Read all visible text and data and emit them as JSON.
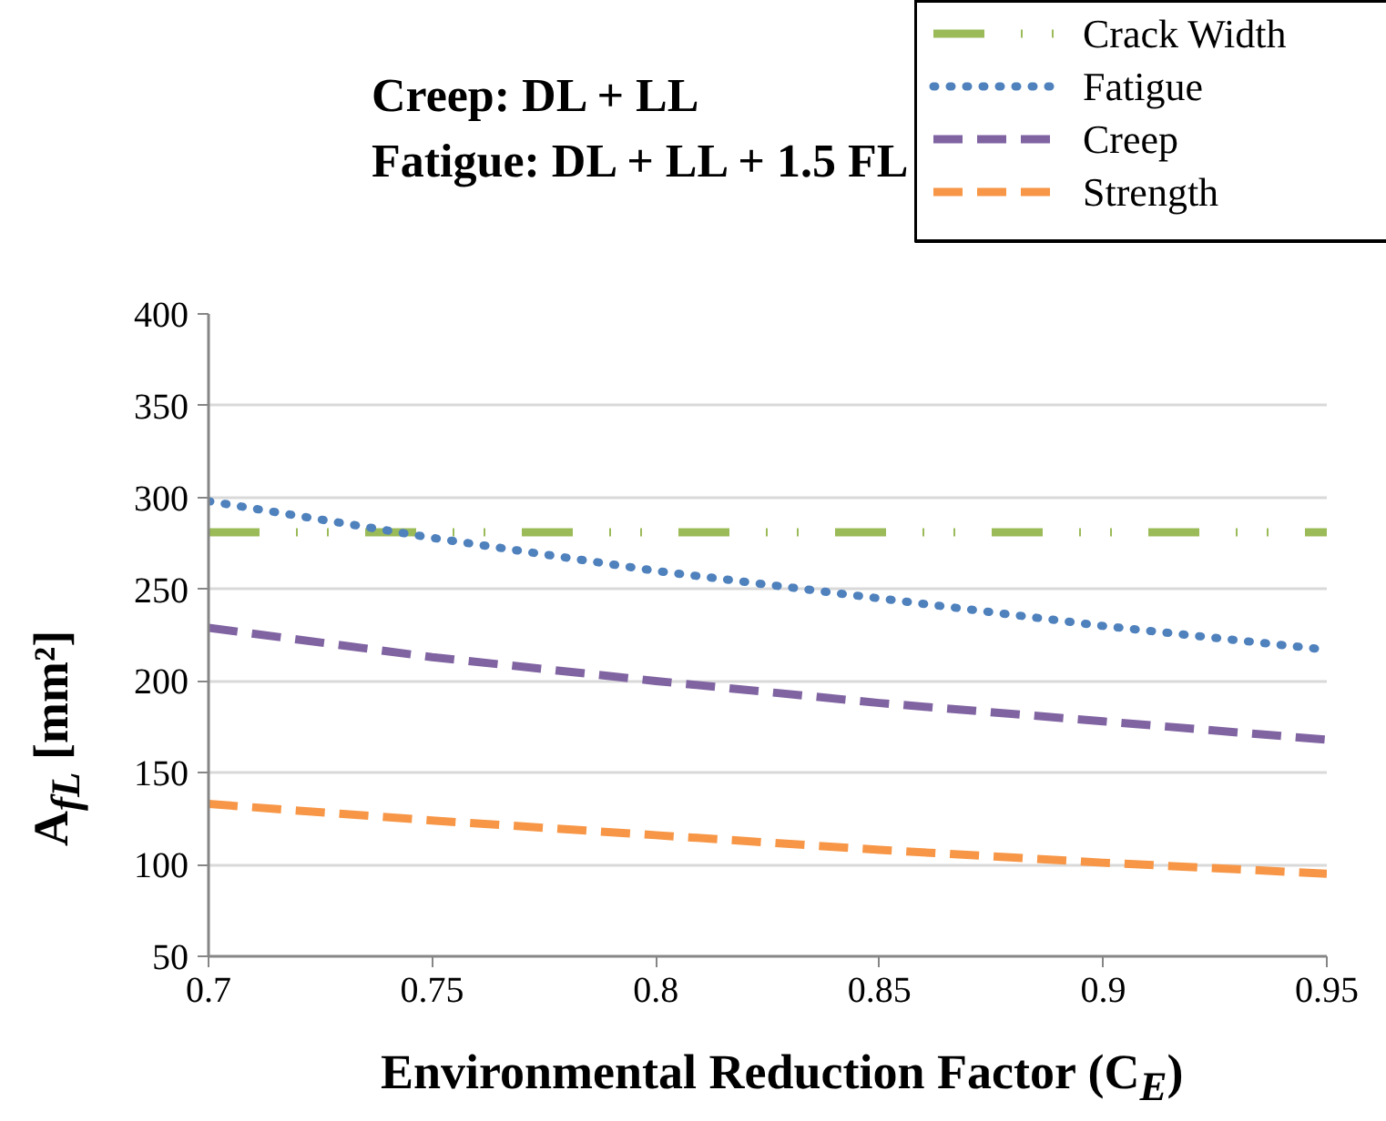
{
  "chart_data": {
    "type": "line",
    "annotations": [
      "Creep: DL + LL",
      "Fatigue: DL + LL + 1.5 FL"
    ],
    "xlabel": "Environmental Reduction Factor (C$_{E}$)",
    "ylabel": "A$_{fL}$ [mm²]",
    "x": [
      0.7,
      0.75,
      0.8,
      0.85,
      0.9,
      0.95
    ],
    "series": [
      {
        "name": "Crack Width",
        "color": "#9bbb59",
        "line_style": "dashdot",
        "values": [
          281,
          281,
          281,
          281,
          281,
          281
        ]
      },
      {
        "name": "Fatigue",
        "color": "#4f81bd",
        "line_style": "dotted",
        "values": [
          298,
          278,
          260,
          245,
          230,
          217
        ]
      },
      {
        "name": "Creep",
        "color": "#8064a2",
        "line_style": "dashed",
        "values": [
          229,
          213,
          200,
          188,
          178,
          168
        ]
      },
      {
        "name": "Strength",
        "color": "#f79646",
        "line_style": "dashed",
        "values": [
          133,
          124,
          116,
          108,
          101,
          95
        ]
      }
    ],
    "xlim": [
      0.7,
      0.95
    ],
    "xticks": [
      0.7,
      0.75,
      0.8,
      0.85,
      0.9,
      0.95
    ],
    "ylim": [
      50,
      400
    ],
    "yticks": [
      50,
      100,
      150,
      200,
      250,
      300,
      350,
      400
    ],
    "grid": "y",
    "legend": "top right"
  }
}
